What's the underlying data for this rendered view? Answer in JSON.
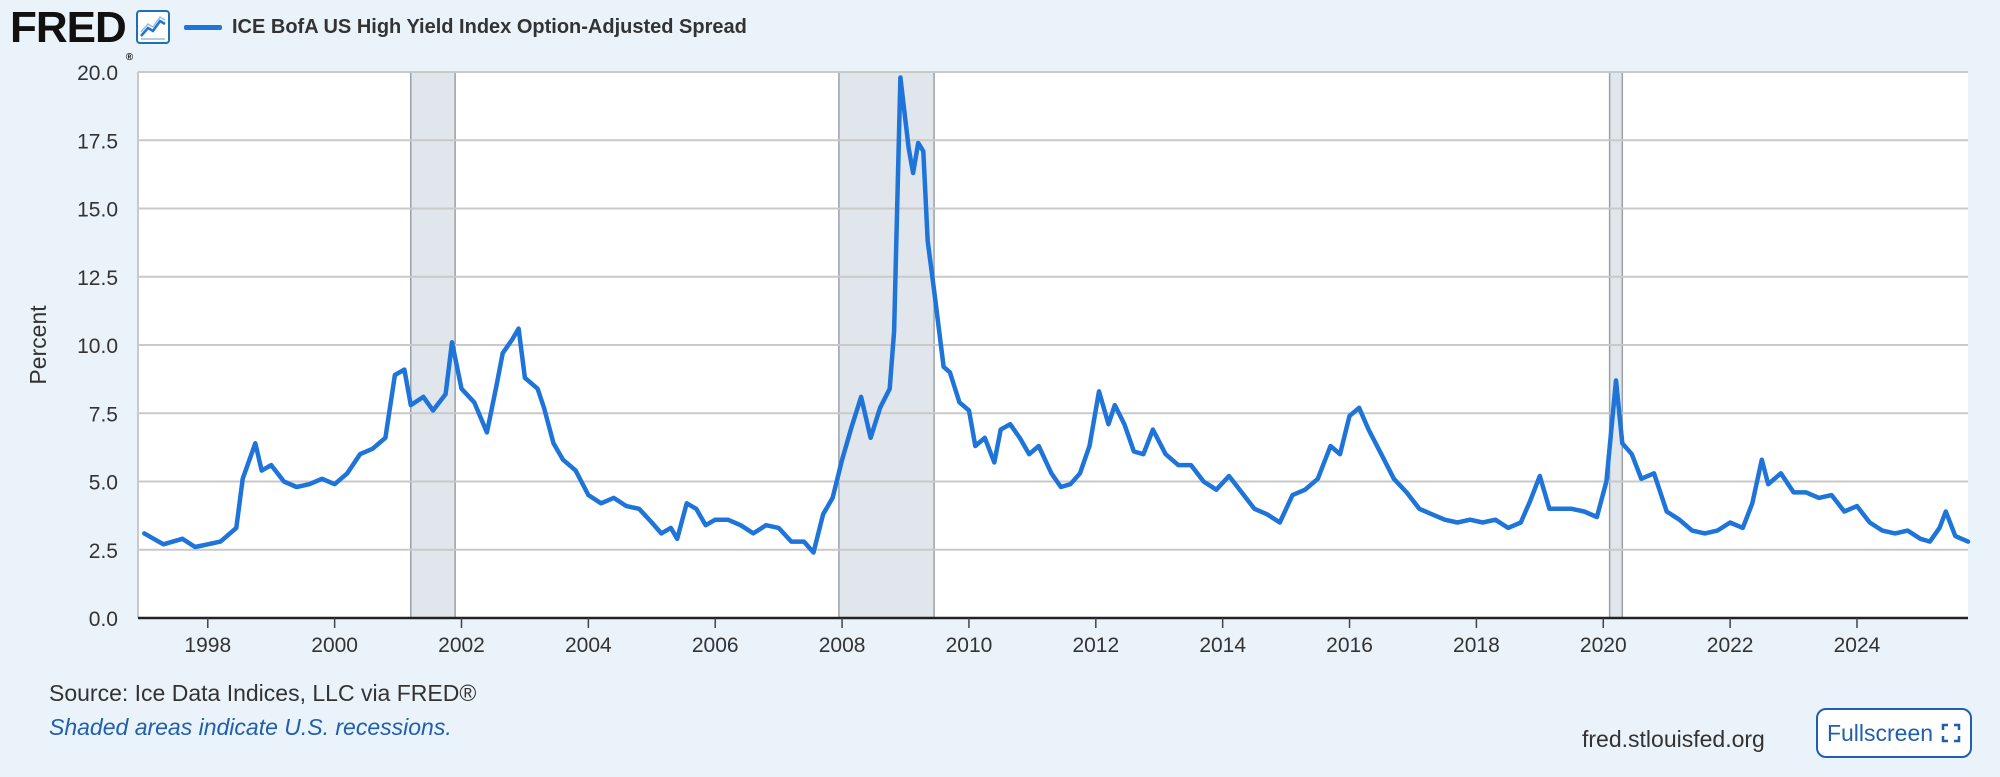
{
  "header": {
    "logo_text": "FRED",
    "logo_reg": "®",
    "legend_label": "ICE BofA US High Yield Index Option-Adjusted Spread",
    "graph_icon": "line-chart-icon"
  },
  "chart_data": {
    "type": "line",
    "title": "",
    "xlabel": "",
    "ylabel": "Percent",
    "xlim": [
      1996.9,
      2025.75
    ],
    "ylim": [
      0,
      20
    ],
    "yticks": [
      "0.0",
      "2.5",
      "5.0",
      "7.5",
      "10.0",
      "12.5",
      "15.0",
      "17.5",
      "20.0"
    ],
    "xticks": [
      "1998",
      "2000",
      "2002",
      "2004",
      "2006",
      "2008",
      "2010",
      "2012",
      "2014",
      "2016",
      "2018",
      "2020",
      "2022",
      "2024"
    ],
    "grid": true,
    "recessions": [
      [
        2001.2,
        2001.9
      ],
      [
        2007.95,
        2009.45
      ],
      [
        2020.1,
        2020.3
      ]
    ],
    "series": [
      {
        "name": "ICE BofA US High Yield Index Option-Adjusted Spread",
        "color": "#1e74d9",
        "points": [
          [
            1997.0,
            3.1
          ],
          [
            1997.3,
            2.7
          ],
          [
            1997.6,
            2.9
          ],
          [
            1997.8,
            2.6
          ],
          [
            1998.0,
            2.7
          ],
          [
            1998.2,
            2.8
          ],
          [
            1998.45,
            3.3
          ],
          [
            1998.55,
            5.1
          ],
          [
            1998.75,
            6.4
          ],
          [
            1998.85,
            5.4
          ],
          [
            1999.0,
            5.6
          ],
          [
            1999.2,
            5.0
          ],
          [
            1999.4,
            4.8
          ],
          [
            1999.6,
            4.9
          ],
          [
            1999.8,
            5.1
          ],
          [
            2000.0,
            4.9
          ],
          [
            2000.2,
            5.3
          ],
          [
            2000.4,
            6.0
          ],
          [
            2000.6,
            6.2
          ],
          [
            2000.8,
            6.6
          ],
          [
            2000.95,
            8.9
          ],
          [
            2001.1,
            9.1
          ],
          [
            2001.2,
            7.8
          ],
          [
            2001.4,
            8.1
          ],
          [
            2001.55,
            7.6
          ],
          [
            2001.75,
            8.2
          ],
          [
            2001.85,
            10.1
          ],
          [
            2002.0,
            8.4
          ],
          [
            2002.2,
            7.9
          ],
          [
            2002.4,
            6.8
          ],
          [
            2002.55,
            8.5
          ],
          [
            2002.65,
            9.7
          ],
          [
            2002.8,
            10.2
          ],
          [
            2002.9,
            10.6
          ],
          [
            2003.0,
            8.8
          ],
          [
            2003.2,
            8.4
          ],
          [
            2003.3,
            7.7
          ],
          [
            2003.45,
            6.4
          ],
          [
            2003.6,
            5.8
          ],
          [
            2003.8,
            5.4
          ],
          [
            2004.0,
            4.5
          ],
          [
            2004.2,
            4.2
          ],
          [
            2004.4,
            4.4
          ],
          [
            2004.6,
            4.1
          ],
          [
            2004.8,
            4.0
          ],
          [
            2005.0,
            3.5
          ],
          [
            2005.15,
            3.1
          ],
          [
            2005.3,
            3.3
          ],
          [
            2005.4,
            2.9
          ],
          [
            2005.55,
            4.2
          ],
          [
            2005.7,
            4.0
          ],
          [
            2005.85,
            3.4
          ],
          [
            2006.0,
            3.6
          ],
          [
            2006.2,
            3.6
          ],
          [
            2006.4,
            3.4
          ],
          [
            2006.6,
            3.1
          ],
          [
            2006.8,
            3.4
          ],
          [
            2007.0,
            3.3
          ],
          [
            2007.2,
            2.8
          ],
          [
            2007.4,
            2.8
          ],
          [
            2007.55,
            2.4
          ],
          [
            2007.7,
            3.8
          ],
          [
            2007.85,
            4.4
          ],
          [
            2008.0,
            5.8
          ],
          [
            2008.15,
            7.0
          ],
          [
            2008.3,
            8.1
          ],
          [
            2008.45,
            6.6
          ],
          [
            2008.6,
            7.7
          ],
          [
            2008.75,
            8.4
          ],
          [
            2008.82,
            10.5
          ],
          [
            2008.92,
            19.8
          ],
          [
            2009.05,
            17.2
          ],
          [
            2009.12,
            16.3
          ],
          [
            2009.2,
            17.4
          ],
          [
            2009.28,
            17.1
          ],
          [
            2009.35,
            13.8
          ],
          [
            2009.45,
            12.0
          ],
          [
            2009.6,
            9.2
          ],
          [
            2009.7,
            9.0
          ],
          [
            2009.85,
            7.9
          ],
          [
            2010.0,
            7.6
          ],
          [
            2010.1,
            6.3
          ],
          [
            2010.25,
            6.6
          ],
          [
            2010.4,
            5.7
          ],
          [
            2010.5,
            6.9
          ],
          [
            2010.65,
            7.1
          ],
          [
            2010.8,
            6.6
          ],
          [
            2010.95,
            6.0
          ],
          [
            2011.1,
            6.3
          ],
          [
            2011.3,
            5.3
          ],
          [
            2011.45,
            4.8
          ],
          [
            2011.6,
            4.9
          ],
          [
            2011.75,
            5.3
          ],
          [
            2011.9,
            6.3
          ],
          [
            2012.05,
            8.3
          ],
          [
            2012.2,
            7.1
          ],
          [
            2012.3,
            7.8
          ],
          [
            2012.45,
            7.1
          ],
          [
            2012.6,
            6.1
          ],
          [
            2012.75,
            6.0
          ],
          [
            2012.9,
            6.9
          ],
          [
            2013.1,
            6.0
          ],
          [
            2013.3,
            5.6
          ],
          [
            2013.5,
            5.6
          ],
          [
            2013.7,
            5.0
          ],
          [
            2013.9,
            4.7
          ],
          [
            2014.1,
            5.2
          ],
          [
            2014.3,
            4.6
          ],
          [
            2014.5,
            4.0
          ],
          [
            2014.7,
            3.8
          ],
          [
            2014.9,
            3.5
          ],
          [
            2015.1,
            4.5
          ],
          [
            2015.3,
            4.7
          ],
          [
            2015.5,
            5.1
          ],
          [
            2015.7,
            6.3
          ],
          [
            2015.85,
            6.0
          ],
          [
            2016.0,
            7.4
          ],
          [
            2016.15,
            7.7
          ],
          [
            2016.3,
            6.9
          ],
          [
            2016.5,
            6.0
          ],
          [
            2016.7,
            5.1
          ],
          [
            2016.9,
            4.6
          ],
          [
            2017.1,
            4.0
          ],
          [
            2017.3,
            3.8
          ],
          [
            2017.5,
            3.6
          ],
          [
            2017.7,
            3.5
          ],
          [
            2017.9,
            3.6
          ],
          [
            2018.1,
            3.5
          ],
          [
            2018.3,
            3.6
          ],
          [
            2018.5,
            3.3
          ],
          [
            2018.7,
            3.5
          ],
          [
            2018.85,
            4.3
          ],
          [
            2019.0,
            5.2
          ],
          [
            2019.15,
            4.0
          ],
          [
            2019.3,
            4.0
          ],
          [
            2019.5,
            4.0
          ],
          [
            2019.7,
            3.9
          ],
          [
            2019.9,
            3.7
          ],
          [
            2020.05,
            5.0
          ],
          [
            2020.2,
            8.7
          ],
          [
            2020.3,
            6.4
          ],
          [
            2020.45,
            6.0
          ],
          [
            2020.6,
            5.1
          ],
          [
            2020.8,
            5.3
          ],
          [
            2021.0,
            3.9
          ],
          [
            2021.2,
            3.6
          ],
          [
            2021.4,
            3.2
          ],
          [
            2021.6,
            3.1
          ],
          [
            2021.8,
            3.2
          ],
          [
            2022.0,
            3.5
          ],
          [
            2022.2,
            3.3
          ],
          [
            2022.35,
            4.2
          ],
          [
            2022.5,
            5.8
          ],
          [
            2022.6,
            4.9
          ],
          [
            2022.8,
            5.3
          ],
          [
            2023.0,
            4.6
          ],
          [
            2023.2,
            4.6
          ],
          [
            2023.4,
            4.4
          ],
          [
            2023.6,
            4.5
          ],
          [
            2023.8,
            3.9
          ],
          [
            2024.0,
            4.1
          ],
          [
            2024.2,
            3.5
          ],
          [
            2024.4,
            3.2
          ],
          [
            2024.6,
            3.1
          ],
          [
            2024.8,
            3.2
          ],
          [
            2025.0,
            2.9
          ],
          [
            2025.15,
            2.8
          ],
          [
            2025.3,
            3.3
          ],
          [
            2025.4,
            3.9
          ],
          [
            2025.55,
            3.0
          ],
          [
            2025.75,
            2.8
          ]
        ]
      }
    ]
  },
  "footer": {
    "source": "Source: Ice Data Indices, LLC via FRED®",
    "note": "Shaded areas indicate U.S. recessions.",
    "url": "fred.stlouisfed.org",
    "fullscreen_label": "Fullscreen",
    "fullscreen_icon": "expand-icon"
  }
}
